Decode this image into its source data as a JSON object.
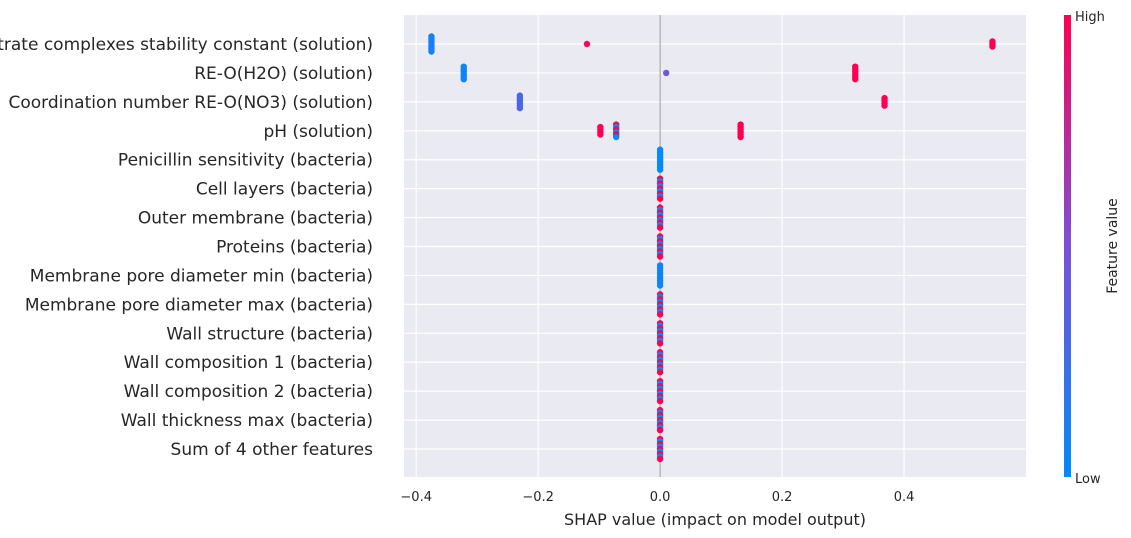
{
  "chart_data": {
    "type": "scatter",
    "subtype": "shap-beeswarm",
    "xlabel": "SHAP value (impact on model output)",
    "xlim": [
      -0.42,
      0.6
    ],
    "xticks": [
      -0.4,
      -0.2,
      0.0,
      0.2,
      0.4
    ],
    "xtick_labels": [
      "−0.4",
      "−0.2",
      "0.0",
      "0.2",
      "0.4"
    ],
    "grid": true,
    "colorbar": {
      "title": "Feature value",
      "high_label": "High",
      "low_label": "Low",
      "low_color": "#008bfb",
      "high_color": "#ff0051"
    },
    "colors": {
      "plot_bg": "#eaeaf2",
      "grid": "#ffffff",
      "zero_line": "#999999",
      "text": "#262626"
    },
    "features": [
      {
        "name": "Nitrate complexes stability constant (solution)",
        "clusters": [
          {
            "x": -0.375,
            "level": 0.1,
            "n": 7,
            "mixed": false
          },
          {
            "x": -0.12,
            "level": 0.95,
            "n": 1,
            "mixed": false
          },
          {
            "x": 0.545,
            "level": 1.0,
            "n": 3,
            "mixed": false
          }
        ]
      },
      {
        "name": "RE-O(H2O) (solution)",
        "clusters": [
          {
            "x": -0.322,
            "level": 0.05,
            "n": 6,
            "mixed": false
          },
          {
            "x": 0.01,
            "level": 0.45,
            "n": 1,
            "mixed": false
          },
          {
            "x": 0.32,
            "level": 1.0,
            "n": 6,
            "mixed": false
          }
        ]
      },
      {
        "name": "Coordination number RE-O(NO3) (solution)",
        "clusters": [
          {
            "x": -0.23,
            "level": 0.3,
            "n": 6,
            "mixed": false
          },
          {
            "x": 0.368,
            "level": 1.0,
            "n": 4,
            "mixed": false
          }
        ]
      },
      {
        "name": "pH (solution)",
        "clusters": [
          {
            "x": -0.098,
            "level": 1.0,
            "n": 4,
            "mixed": false
          },
          {
            "x": -0.072,
            "level": 0.85,
            "n": 6,
            "mixed": true
          },
          {
            "x": 0.132,
            "level": 1.0,
            "n": 6,
            "mixed": false
          }
        ]
      },
      {
        "name": "Penicillin sensitivity (bacteria)",
        "clusters": [
          {
            "x": 0.0,
            "level": 0.0,
            "n": 9,
            "mixed": false
          }
        ]
      },
      {
        "name": "Cell layers (bacteria)",
        "clusters": [
          {
            "x": 0.0,
            "level": 0.5,
            "n": 9,
            "mixed": true
          }
        ]
      },
      {
        "name": "Outer membrane (bacteria)",
        "clusters": [
          {
            "x": 0.0,
            "level": 0.7,
            "n": 9,
            "mixed": true
          }
        ]
      },
      {
        "name": "Proteins (bacteria)",
        "clusters": [
          {
            "x": 0.0,
            "level": 0.8,
            "n": 9,
            "mixed": true
          }
        ]
      },
      {
        "name": "Membrane pore diameter min (bacteria)",
        "clusters": [
          {
            "x": 0.0,
            "level": 0.05,
            "n": 9,
            "mixed": false
          }
        ]
      },
      {
        "name": "Membrane pore diameter max (bacteria)",
        "clusters": [
          {
            "x": 0.0,
            "level": 0.8,
            "n": 9,
            "mixed": true
          }
        ]
      },
      {
        "name": "Wall structure (bacteria)",
        "clusters": [
          {
            "x": 0.0,
            "level": 0.5,
            "n": 9,
            "mixed": true
          }
        ]
      },
      {
        "name": "Wall composition 1 (bacteria)",
        "clusters": [
          {
            "x": 0.0,
            "level": 0.5,
            "n": 9,
            "mixed": true
          }
        ]
      },
      {
        "name": "Wall composition 2 (bacteria)",
        "clusters": [
          {
            "x": 0.0,
            "level": 0.6,
            "n": 9,
            "mixed": true
          }
        ]
      },
      {
        "name": "Wall thickness max (bacteria)",
        "clusters": [
          {
            "x": 0.0,
            "level": 0.6,
            "n": 9,
            "mixed": true
          }
        ]
      },
      {
        "name": "Sum of 4 other features",
        "clusters": [
          {
            "x": 0.0,
            "level": 0.4,
            "n": 9,
            "mixed": true
          }
        ]
      }
    ]
  }
}
